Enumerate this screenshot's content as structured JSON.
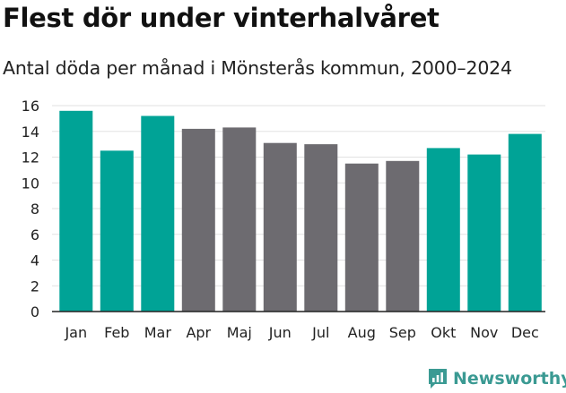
{
  "header": {
    "title": "Flest dör under vinterhalvåret",
    "subtitle": "Antal döda per månad i Mönsterås kommun, 2000–2024"
  },
  "brand": {
    "name": "Newsworthy",
    "icon": "newsworthy-logo-icon"
  },
  "colors": {
    "winter": "#00a396",
    "summer": "#6d6b70",
    "grid": "#e2e2e2",
    "axis": "#222222",
    "brand": "#3b9a93"
  },
  "chart_data": {
    "type": "bar",
    "title": "Flest dör under vinterhalvåret",
    "subtitle": "Antal döda per månad i Mönsterås kommun, 2000–2024",
    "xlabel": "",
    "ylabel": "",
    "ylim": [
      0,
      16
    ],
    "yticks": [
      0,
      2,
      4,
      6,
      8,
      10,
      12,
      14,
      16
    ],
    "grid": true,
    "categories": [
      "Jan",
      "Feb",
      "Mar",
      "Apr",
      "Maj",
      "Jun",
      "Jul",
      "Aug",
      "Sep",
      "Okt",
      "Nov",
      "Dec"
    ],
    "values": [
      15.6,
      12.5,
      15.2,
      14.2,
      14.3,
      13.1,
      13.0,
      11.5,
      11.7,
      12.7,
      12.2,
      13.8
    ],
    "groups": [
      "winter",
      "winter",
      "winter",
      "summer",
      "summer",
      "summer",
      "summer",
      "summer",
      "summer",
      "winter",
      "winter",
      "winter"
    ]
  }
}
